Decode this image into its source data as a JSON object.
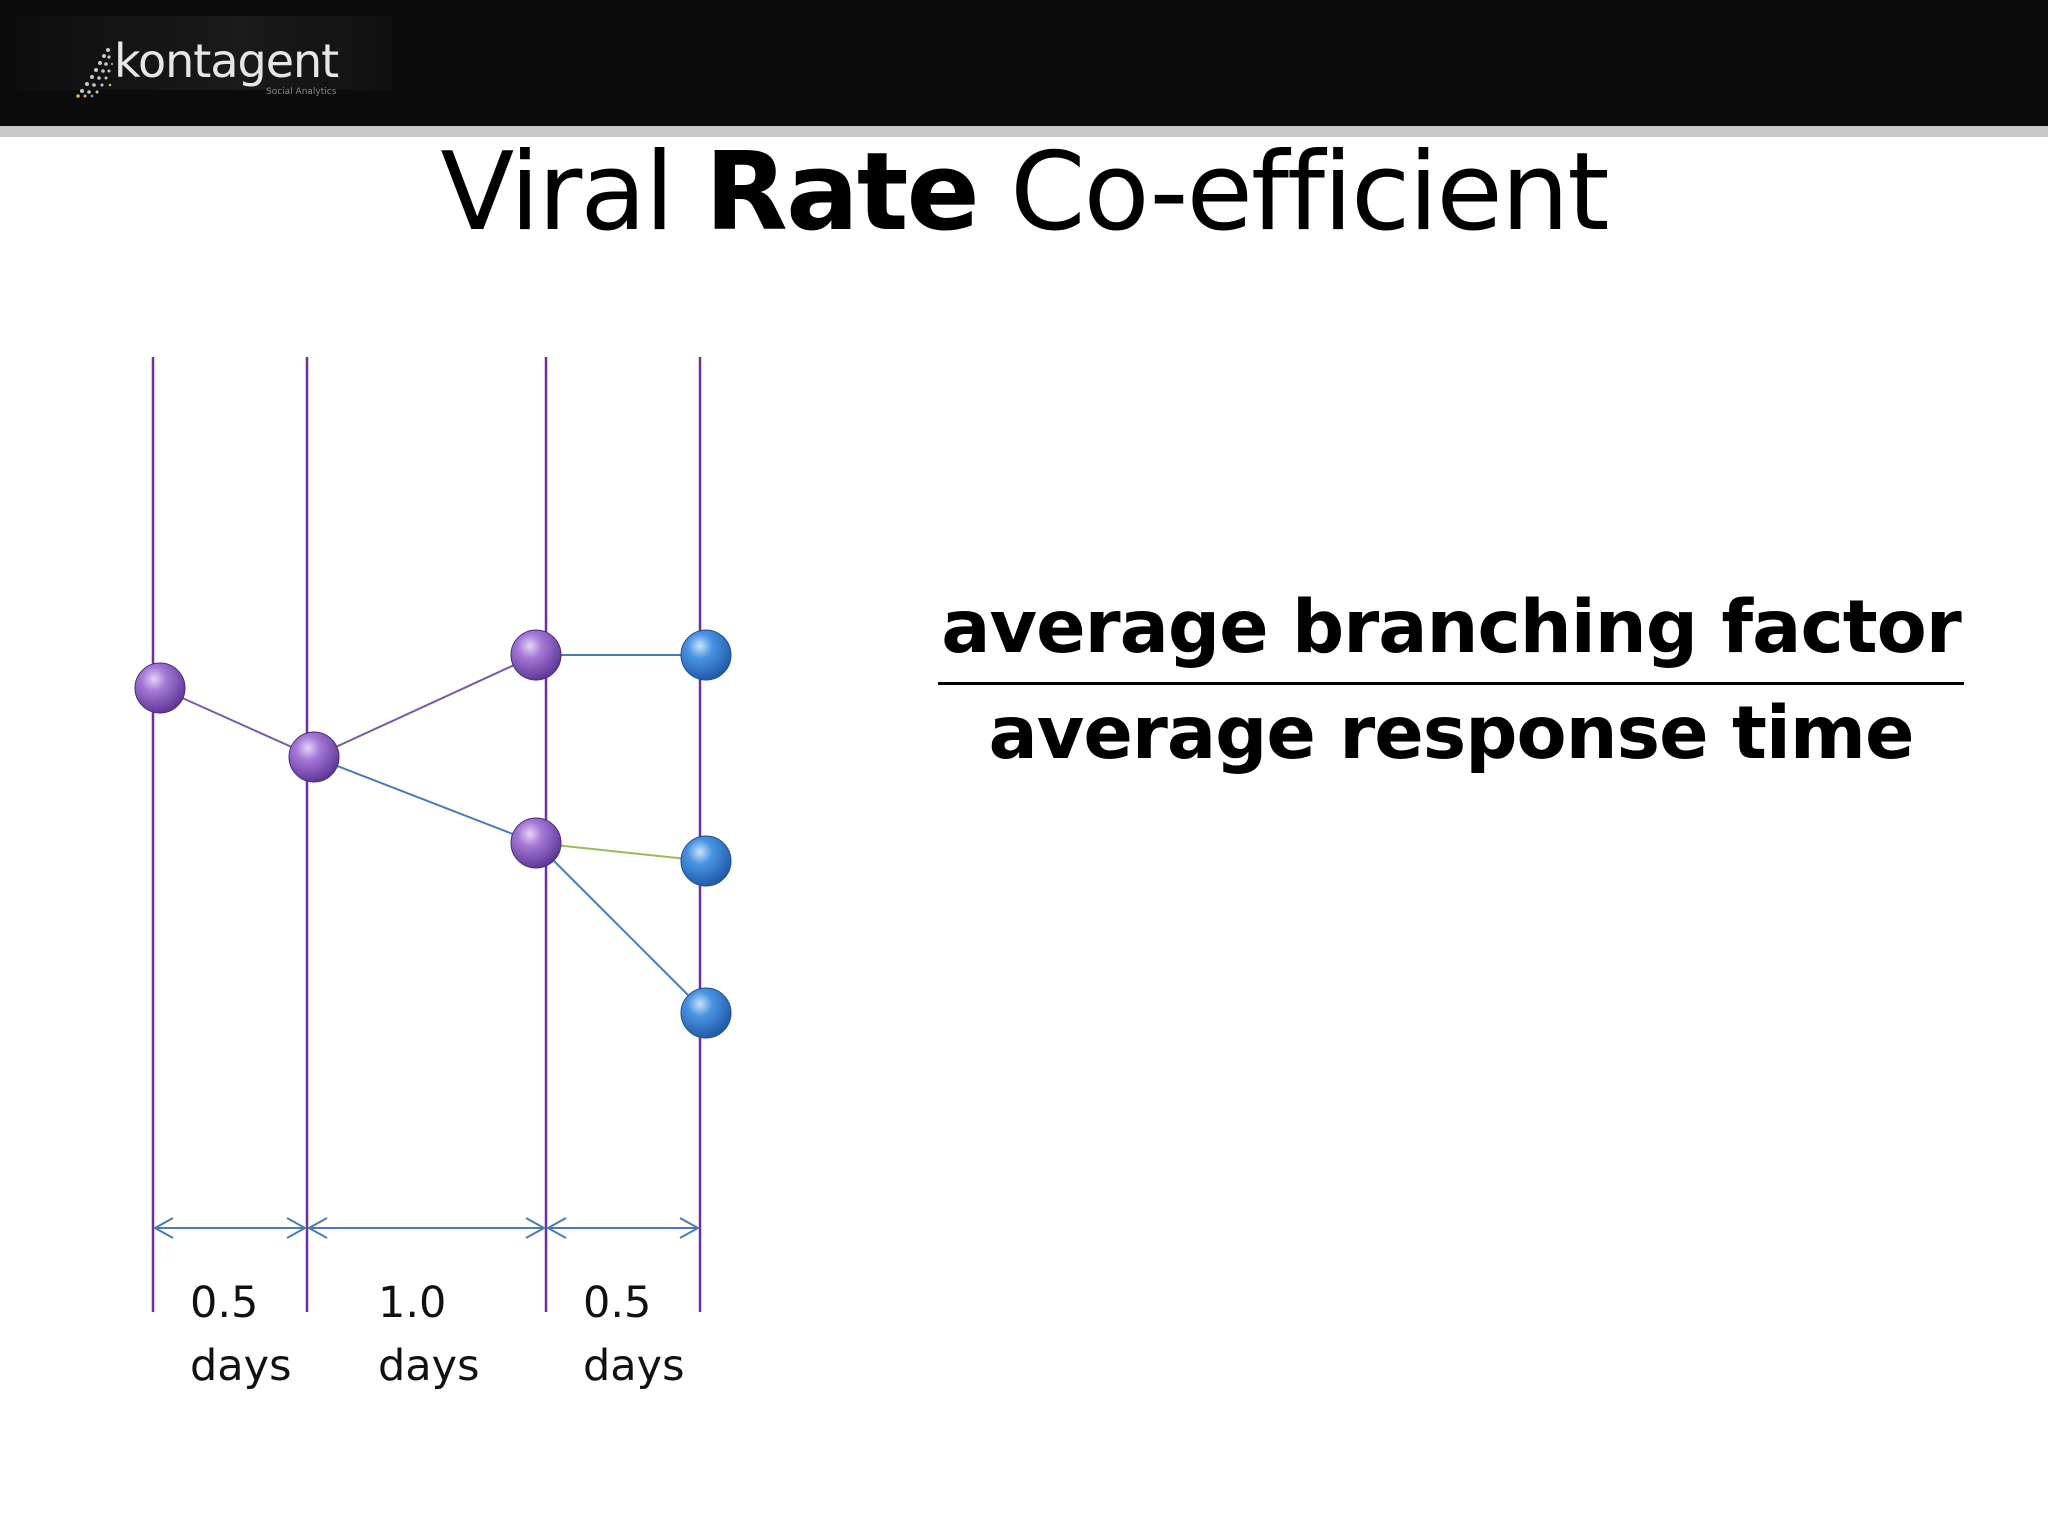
{
  "header": {
    "logo_name": "kontagent",
    "logo_tagline": "Social Analytics"
  },
  "slide": {
    "title_prefix": "Viral",
    "title_bold": "Rate",
    "title_suffix": "Co-efficient"
  },
  "diagram": {
    "intervals": [
      {
        "value": "0.5",
        "unit": "days"
      },
      {
        "value": "1.0",
        "unit": "days"
      },
      {
        "value": "0.5",
        "unit": "days"
      }
    ],
    "colors": {
      "timeline": "#7030a0",
      "node_purple": "#8e5cc4",
      "node_blue": "#3b82d8",
      "edge_purple": "#7b5aa6",
      "edge_blue": "#4a7ab8",
      "edge_green": "#9bbb59",
      "arrow": "#4a7ab8"
    }
  },
  "formula": {
    "numerator": "average branching factor",
    "denominator": "average response time"
  }
}
